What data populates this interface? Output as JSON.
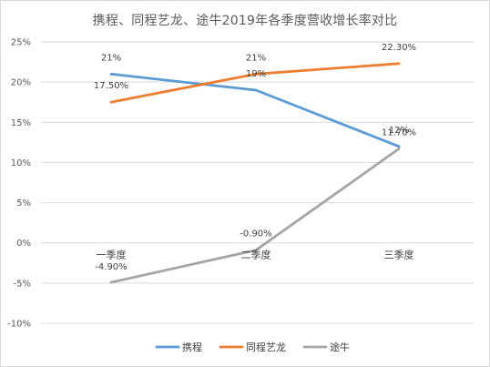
{
  "title": "携程、同程艺龙、途牛2019年各季度营收增长率对比",
  "chart_data": {
    "type": "line",
    "title": "携程、同程艺龙、途牛2019年各季度营收增长率对比",
    "categories": [
      "一季度",
      "二季度",
      "三季度"
    ],
    "ylim": [
      -10,
      25
    ],
    "yticks": [
      25,
      20,
      15,
      10,
      5,
      0,
      -5,
      -10
    ],
    "ytick_labels": [
      "25%",
      "20%",
      "15%",
      "10%",
      "5%",
      "0%",
      "-5%",
      "-10%"
    ],
    "grid": true,
    "legend_position": "bottom",
    "series": [
      {
        "name": "携程",
        "color": "#5B9BD5",
        "values": [
          21,
          19,
          12
        ],
        "labels": [
          "21%",
          "19%",
          "12%"
        ]
      },
      {
        "name": "同程艺龙",
        "color": "#ED7D31",
        "values": [
          17.5,
          21,
          22.3
        ],
        "labels": [
          "17.50%",
          "21%",
          "22.30%"
        ]
      },
      {
        "name": "途牛",
        "color": "#A5A5A5",
        "values": [
          -4.9,
          -0.9,
          11.7
        ],
        "labels": [
          "-4.90%",
          "-0.90%",
          "11.70%"
        ]
      }
    ]
  }
}
